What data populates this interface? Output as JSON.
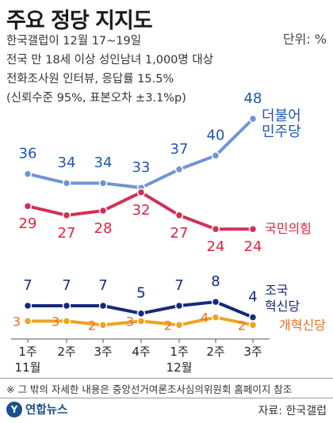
{
  "title": "주요 정당 지지도",
  "unit": "단위: %",
  "subtitle_lines": [
    "한국갤럽이 12월 17~19일",
    "전국 만 18세 이상 성인남녀 1,000명 대상",
    "전화조사원 인터뷰, 응답률 15.5%",
    "(신뢰수준 95%, 표본오차 ±3.1%p)"
  ],
  "footnote": "※ 그 밖의 자세한 내용은 중앙선거여론조사심의위원회 홈페이지 참조",
  "logo_text": "연합뉴스",
  "source": "자료: 한국갤럽",
  "chart_data": {
    "type": "line",
    "x": [
      "1주",
      "2주",
      "3주",
      "4주",
      "1주",
      "2주",
      "3주"
    ],
    "month_labels": [
      {
        "label": "11월",
        "index": 0
      },
      {
        "label": "12월",
        "index": 4
      }
    ],
    "series": [
      {
        "name": "더불어\n민주당",
        "values": [
          36,
          34,
          34,
          33,
          37,
          40,
          48
        ],
        "color": "#6f95d6",
        "label_color": "#1e56b5"
      },
      {
        "name": "국민의힘",
        "values": [
          29,
          27,
          28,
          32,
          27,
          24,
          24
        ],
        "color": "#d22f55",
        "label_color": "#e2233e"
      },
      {
        "name": "조국\n혁신당",
        "values": [
          7,
          7,
          7,
          5,
          7,
          8,
          4
        ],
        "color": "#162a7a",
        "label_color": "#162a7a"
      },
      {
        "name": "개혁신당",
        "values": [
          3,
          3,
          2,
          3,
          2,
          4,
          2
        ],
        "color": "#f2a21f",
        "label_color": "#ee6c1f"
      }
    ],
    "grid": false,
    "legend": "inline-right"
  }
}
